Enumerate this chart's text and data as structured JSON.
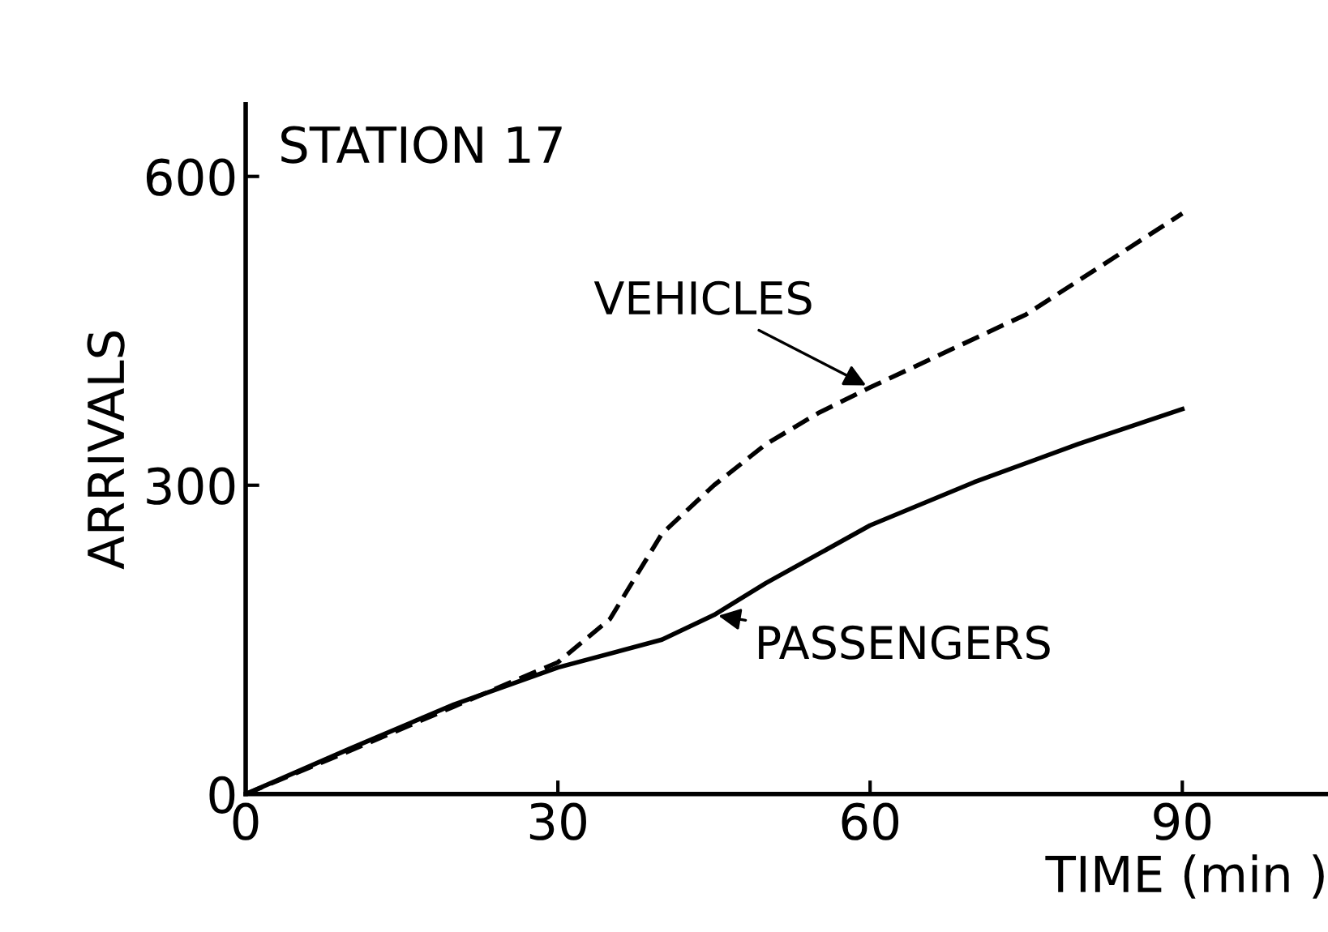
{
  "chart_data": {
    "type": "line",
    "title": "STATION 17",
    "xlabel": "TIME (min )",
    "ylabel": "ARRIVALS",
    "xlim": [
      0,
      104
    ],
    "ylim": [
      0,
      670
    ],
    "xticks": [
      0,
      30,
      60,
      90
    ],
    "yticks": [
      0,
      300,
      600
    ],
    "grid": false,
    "series": [
      {
        "name": "VEHICLES",
        "color": "#000000",
        "line_style": "dashed",
        "x": [
          0,
          10,
          20,
          30,
          35,
          40,
          45,
          50,
          55,
          60,
          75,
          90
        ],
        "values": [
          0,
          42,
          85,
          128,
          170,
          253,
          300,
          340,
          370,
          395,
          466,
          564
        ]
      },
      {
        "name": "PASSENGERS",
        "color": "#000000",
        "line_style": "solid",
        "x": [
          0,
          10,
          20,
          30,
          40,
          45,
          50,
          60,
          70,
          80,
          90
        ],
        "values": [
          0,
          44,
          87,
          123,
          150,
          174,
          205,
          261,
          303,
          340,
          374
        ]
      }
    ]
  }
}
